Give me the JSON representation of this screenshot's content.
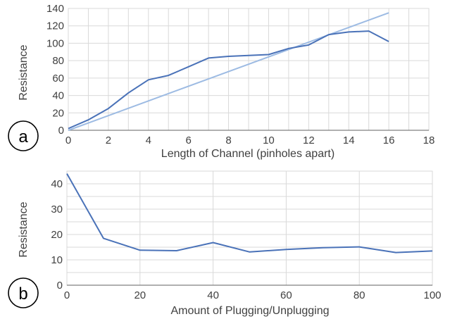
{
  "chart_data": [
    {
      "panel_label": "a",
      "type": "line",
      "xlabel": "Length of Channel (pinholes apart)",
      "ylabel": "Resistance",
      "xlim": [
        0,
        18
      ],
      "ylim": [
        0,
        140
      ],
      "xticks": [
        0,
        2,
        4,
        6,
        8,
        10,
        12,
        14,
        16,
        18
      ],
      "yticks": [
        0,
        20,
        40,
        60,
        80,
        100,
        120,
        140
      ],
      "x_gridlines": [
        0,
        1,
        2,
        3,
        4,
        5,
        6,
        7,
        8,
        9,
        10,
        11,
        12,
        13,
        14,
        15,
        16,
        17,
        18
      ],
      "grid": true,
      "series": [
        {
          "color": "#4A72B8",
          "x": [
            0,
            1,
            2,
            3,
            4,
            5,
            6,
            7,
            8,
            9,
            10,
            11,
            12,
            13,
            14,
            15,
            16
          ],
          "values": [
            2,
            12,
            25,
            43,
            58,
            63,
            73,
            83,
            85,
            86,
            87,
            94,
            98,
            110,
            113,
            114,
            102
          ]
        },
        {
          "color": "#9DBBE3",
          "x": [
            0,
            16
          ],
          "values": [
            0,
            135
          ]
        }
      ]
    },
    {
      "panel_label": "b",
      "type": "line",
      "xlabel": "Amount of Plugging/Unplugging",
      "ylabel": "Resistance",
      "xlim": [
        0,
        100
      ],
      "ylim": [
        0,
        45
      ],
      "xticks": [
        0,
        20,
        40,
        60,
        80,
        100
      ],
      "yticks": [
        0,
        10,
        20,
        30,
        40
      ],
      "y_gridlines": [
        0,
        5,
        10,
        15,
        20,
        25,
        30,
        35,
        40,
        45
      ],
      "grid": true,
      "series": [
        {
          "color": "#4A72B8",
          "x": [
            0,
            10,
            20,
            30,
            40,
            50,
            60,
            70,
            80,
            90,
            100
          ],
          "values": [
            44,
            18.5,
            13.8,
            13.6,
            16.8,
            13.1,
            14.1,
            14.8,
            15.1,
            12.9,
            13.5
          ]
        }
      ]
    }
  ]
}
